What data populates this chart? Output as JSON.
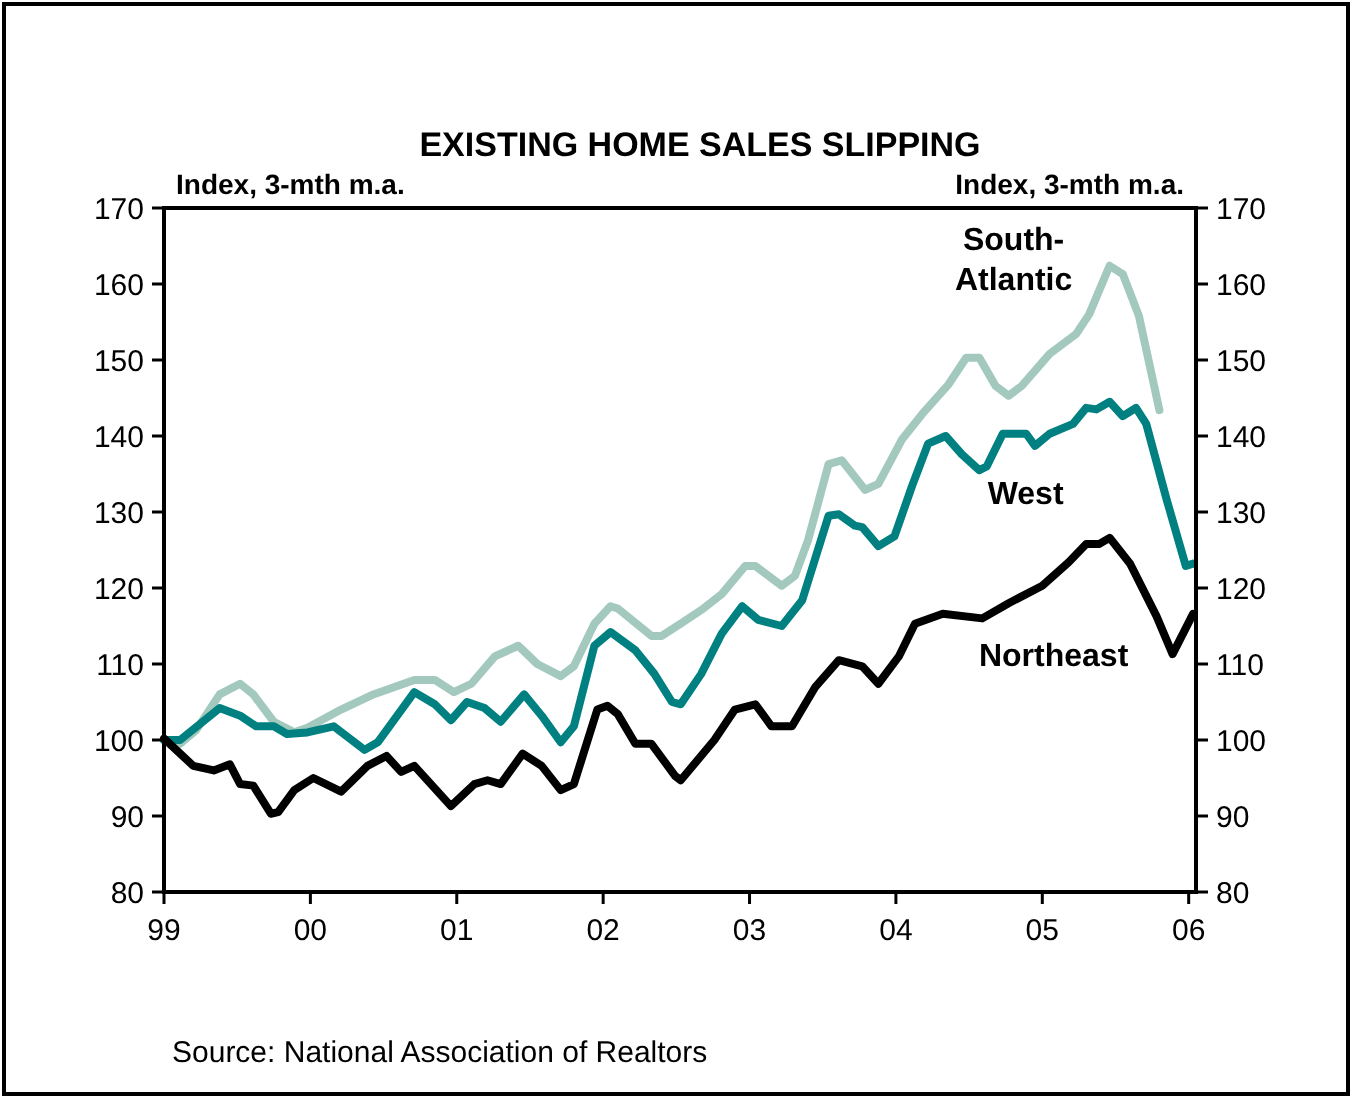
{
  "chart_data": {
    "type": "line",
    "title": "EXISTING HOME SALES SLIPPING",
    "ylabel": "Index, 3-mth m.a.",
    "y2label": "Index, 3-mth m.a.",
    "xlim": [
      1999,
      2006.05
    ],
    "xticks": [
      {
        "value": 1999,
        "label": "99"
      },
      {
        "value": 2000,
        "label": "00"
      },
      {
        "value": 2001,
        "label": "01"
      },
      {
        "value": 2002,
        "label": "02"
      },
      {
        "value": 2003,
        "label": "03"
      },
      {
        "value": 2004,
        "label": "04"
      },
      {
        "value": 2005,
        "label": "05"
      },
      {
        "value": 2006,
        "label": "06"
      }
    ],
    "ylim": [
      80,
      170
    ],
    "yticks": [
      80,
      90,
      100,
      110,
      120,
      130,
      140,
      150,
      160,
      170
    ],
    "y2lim": [
      80,
      170
    ],
    "y2ticks": [
      80,
      90,
      100,
      110,
      120,
      130,
      140,
      150,
      160,
      170
    ],
    "grid": false,
    "marker": "none",
    "line_style": "solid",
    "series": [
      {
        "name": "South-Atlantic",
        "color": "#a3c9bf",
        "x": [
          1999.0,
          1999.11,
          1999.22,
          1999.38,
          1999.52,
          1999.61,
          1999.75,
          1999.89,
          1999.98,
          2000.21,
          2000.43,
          2000.71,
          2000.85,
          2000.98,
          2001.1,
          2001.26,
          2001.42,
          2001.55,
          2001.71,
          2001.8,
          2001.94,
          2002.05,
          2002.1,
          2002.33,
          2002.4,
          2002.53,
          2002.67,
          2002.81,
          2002.97,
          2003.04,
          2003.22,
          2003.31,
          2003.4,
          2003.54,
          2003.63,
          2003.79,
          2003.88,
          2004.04,
          2004.18,
          2004.36,
          2004.48,
          2004.57,
          2004.68,
          2004.77,
          2004.86,
          2005.05,
          2005.23,
          2005.32,
          2005.46,
          2005.55,
          2005.66,
          2005.8
        ],
        "values": [
          100,
          99.5,
          101.3,
          106,
          107.4,
          106,
          102.4,
          101,
          101.6,
          104,
          106,
          107.9,
          107.9,
          106.3,
          107.4,
          111,
          112.4,
          110,
          108.4,
          109.7,
          115.3,
          117.6,
          117.3,
          113.7,
          113.7,
          115.3,
          117.1,
          119.2,
          122.9,
          122.9,
          120.3,
          121.6,
          126.3,
          136.3,
          136.8,
          132.9,
          133.7,
          139.5,
          142.9,
          146.8,
          150.3,
          150.3,
          146.6,
          145.3,
          146.6,
          150.8,
          153.4,
          156,
          162.4,
          161.3,
          155.8,
          143.4
        ]
      },
      {
        "name": "West",
        "color": "#008080",
        "x": [
          1999.0,
          1999.11,
          1999.38,
          1999.52,
          1999.63,
          1999.75,
          1999.84,
          1999.98,
          2000.16,
          2000.37,
          2000.46,
          2000.71,
          2000.85,
          2000.96,
          2001.07,
          2001.19,
          2001.3,
          2001.46,
          2001.58,
          2001.71,
          2001.8,
          2001.94,
          2002.05,
          2002.22,
          2002.35,
          2002.47,
          2002.53,
          2002.67,
          2002.81,
          2002.95,
          2003.06,
          2003.22,
          2003.36,
          2003.54,
          2003.61,
          2003.72,
          2003.77,
          2003.88,
          2003.99,
          2004.11,
          2004.22,
          2004.34,
          2004.45,
          2004.57,
          2004.62,
          2004.73,
          2004.89,
          2004.95,
          2005.05,
          2005.21,
          2005.3,
          2005.37,
          2005.46,
          2005.55,
          2005.64,
          2005.71,
          2005.85,
          2005.98,
          2006.03
        ],
        "values": [
          100,
          100,
          104.2,
          103.2,
          101.8,
          101.8,
          100.8,
          101,
          101.8,
          98.7,
          99.7,
          106.3,
          104.7,
          102.6,
          105,
          104.2,
          102.4,
          106,
          103.2,
          99.7,
          101.8,
          112.4,
          114.2,
          111.8,
          108.7,
          105,
          104.7,
          108.7,
          114,
          117.6,
          115.8,
          115,
          118.4,
          129.5,
          129.7,
          128.2,
          128,
          125.5,
          126.8,
          133.4,
          139,
          140,
          137.6,
          135.5,
          136,
          140.3,
          140.3,
          138.7,
          140.3,
          141.6,
          143.7,
          143.5,
          144.5,
          142.6,
          143.7,
          141.6,
          131.6,
          122.9,
          123.2
        ]
      },
      {
        "name": "Northeast",
        "color": "#000000",
        "x": [
          1999.0,
          1999.2,
          1999.34,
          1999.45,
          1999.52,
          1999.61,
          1999.73,
          1999.78,
          1999.89,
          2000.02,
          2000.21,
          2000.39,
          2000.52,
          2000.62,
          2000.71,
          2000.96,
          2001.12,
          2001.21,
          2001.3,
          2001.45,
          2001.58,
          2001.71,
          2001.8,
          2001.96,
          2002.03,
          2002.1,
          2002.22,
          2002.33,
          2002.49,
          2002.53,
          2002.76,
          2002.9,
          2003.04,
          2003.15,
          2003.29,
          2003.45,
          2003.61,
          2003.77,
          2003.88,
          2004.02,
          2004.13,
          2004.32,
          2004.59,
          2004.77,
          2005.0,
          2005.18,
          2005.3,
          2005.39,
          2005.46,
          2005.6,
          2005.78,
          2005.89,
          2006.03
        ],
        "values": [
          100.2,
          96.6,
          96,
          96.8,
          94.2,
          94,
          90.3,
          90.5,
          93.4,
          95,
          93.2,
          96.6,
          97.9,
          95.8,
          96.6,
          91.3,
          94.2,
          94.7,
          94.2,
          98.2,
          96.6,
          93.4,
          94.2,
          104,
          104.5,
          103.4,
          99.5,
          99.5,
          95.3,
          94.7,
          100,
          104,
          104.7,
          101.8,
          101.8,
          107,
          110.5,
          109.7,
          107.4,
          111,
          115.3,
          116.6,
          116,
          118,
          120.3,
          123.4,
          125.8,
          125.8,
          126.6,
          123.2,
          116.3,
          111.3,
          116.6
        ]
      }
    ],
    "annotations": [
      "Source: National Association of Realtors"
    ]
  }
}
